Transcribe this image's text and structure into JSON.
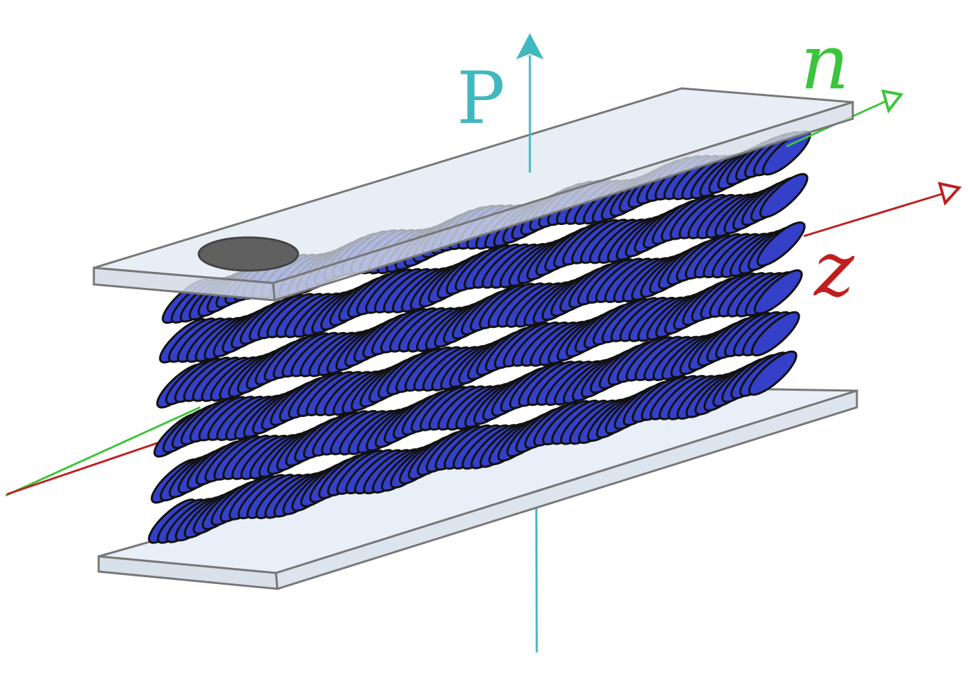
{
  "labels": {
    "polarization": "P",
    "director": "n",
    "layer_normal": "z"
  },
  "colors": {
    "polarization_axis": "#40b8bf",
    "director_axis": "#3cc43c",
    "layer_normal_axis": "#c01e1e",
    "molecule_fill": "#3440c8",
    "molecule_stroke": "#111111",
    "glass_fill": "#dfe8f3",
    "glass_edge": "#777777",
    "electrode": "#606060"
  },
  "structure": {
    "molecule_layers": 6,
    "molecules_per_row": 68
  }
}
